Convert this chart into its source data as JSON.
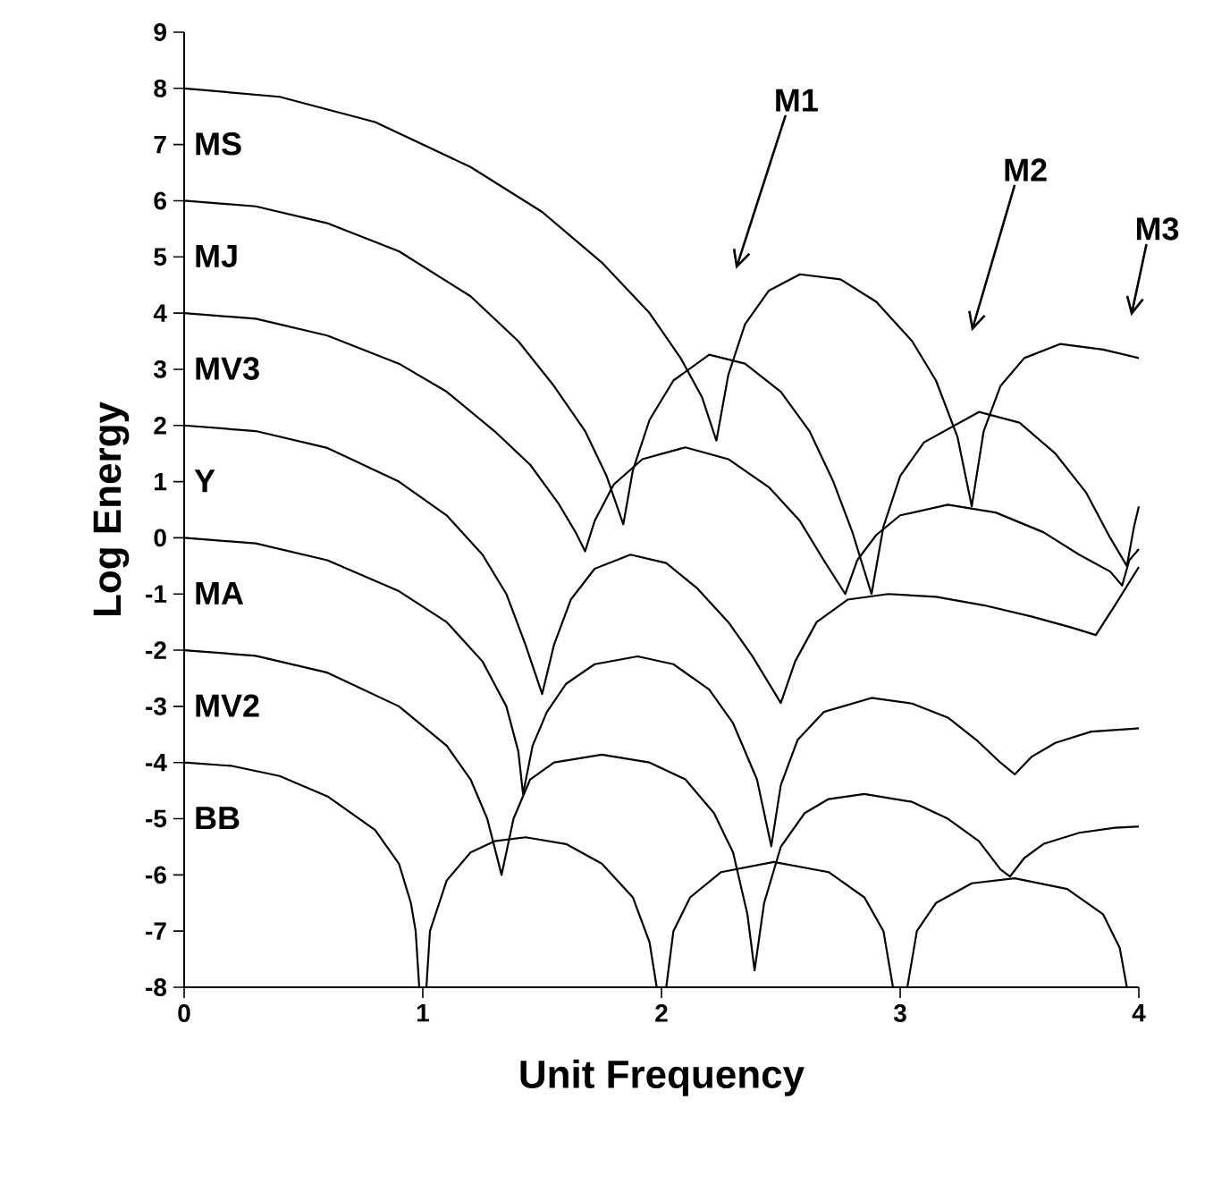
{
  "chart_data": {
    "type": "line",
    "xlabel": "Unit Frequency",
    "ylabel": "Log Energy",
    "xlim": [
      0,
      4
    ],
    "ylim": [
      -8,
      9
    ],
    "xticks": [
      0,
      1,
      2,
      3,
      4
    ],
    "yticks": [
      -8,
      -7,
      -6,
      -5,
      -4,
      -3,
      -2,
      -1,
      0,
      1,
      2,
      3,
      4,
      5,
      6,
      7,
      8,
      9
    ],
    "series": [
      {
        "name": "MS",
        "color": "#000000",
        "x": [
          0,
          0.4,
          0.8,
          1.2,
          1.5,
          1.75,
          1.95,
          2.08,
          2.17,
          2.23,
          2.28,
          2.35,
          2.45,
          2.58,
          2.75,
          2.9,
          3.05,
          3.15,
          3.24,
          3.3,
          3.35,
          3.42,
          3.52,
          3.67,
          3.85,
          4.0
        ],
        "values": [
          8,
          7.85,
          7.4,
          6.6,
          5.8,
          4.9,
          4.0,
          3.2,
          2.5,
          1.73,
          2.9,
          3.8,
          4.4,
          4.69,
          4.6,
          4.2,
          3.5,
          2.8,
          1.8,
          0.56,
          1.9,
          2.7,
          3.2,
          3.45,
          3.35,
          3.2
        ]
      },
      {
        "name": "MJ",
        "color": "#000000",
        "x": [
          0,
          0.3,
          0.6,
          0.9,
          1.2,
          1.4,
          1.55,
          1.68,
          1.77,
          1.84,
          1.88,
          1.95,
          2.05,
          2.2,
          2.35,
          2.5,
          2.62,
          2.72,
          2.8,
          2.88,
          2.93,
          3.0,
          3.1,
          3.33,
          3.5,
          3.65,
          3.78,
          3.88,
          3.95,
          3.98,
          4.0
        ],
        "values": [
          6,
          5.9,
          5.6,
          5.1,
          4.3,
          3.5,
          2.7,
          1.9,
          1.1,
          0.24,
          1.2,
          2.1,
          2.8,
          3.26,
          3.1,
          2.6,
          1.9,
          1.0,
          0.1,
          -1.0,
          0.2,
          1.1,
          1.7,
          2.24,
          2.05,
          1.5,
          0.8,
          0.0,
          -0.5,
          0.2,
          0.56
        ]
      },
      {
        "name": "MV3",
        "color": "#000000",
        "x": [
          0,
          0.3,
          0.6,
          0.9,
          1.1,
          1.3,
          1.45,
          1.57,
          1.64,
          1.68,
          1.72,
          1.8,
          1.92,
          2.1,
          2.28,
          2.45,
          2.58,
          2.68,
          2.77,
          2.82,
          2.9,
          3.0,
          3.2,
          3.4,
          3.6,
          3.75,
          3.88,
          3.93,
          3.96,
          4.0
        ],
        "values": [
          4,
          3.9,
          3.6,
          3.1,
          2.6,
          1.9,
          1.3,
          0.6,
          0.1,
          -0.24,
          0.3,
          0.95,
          1.4,
          1.61,
          1.4,
          0.9,
          0.3,
          -0.4,
          -1.0,
          -0.4,
          0.05,
          0.4,
          0.59,
          0.45,
          0.1,
          -0.3,
          -0.6,
          -0.85,
          -0.4,
          -0.2
        ]
      },
      {
        "name": "Y",
        "color": "#000000",
        "x": [
          0,
          0.3,
          0.6,
          0.9,
          1.1,
          1.25,
          1.35,
          1.43,
          1.5,
          1.55,
          1.62,
          1.72,
          1.87,
          2.02,
          2.15,
          2.28,
          2.38,
          2.5,
          2.56,
          2.65,
          2.78,
          2.95,
          3.15,
          3.35,
          3.55,
          3.72,
          3.82,
          3.9,
          4.0
        ],
        "values": [
          2,
          1.9,
          1.6,
          1.0,
          0.4,
          -0.3,
          -1.0,
          -1.9,
          -2.78,
          -1.9,
          -1.1,
          -0.55,
          -0.3,
          -0.45,
          -0.9,
          -1.5,
          -2.1,
          -2.94,
          -2.2,
          -1.5,
          -1.1,
          -1.0,
          -1.05,
          -1.2,
          -1.4,
          -1.6,
          -1.73,
          -1.2,
          -0.52
        ]
      },
      {
        "name": "MA",
        "color": "#000000",
        "x": [
          0,
          0.3,
          0.6,
          0.9,
          1.1,
          1.25,
          1.35,
          1.4,
          1.42,
          1.46,
          1.52,
          1.6,
          1.72,
          1.9,
          2.05,
          2.2,
          2.3,
          2.4,
          2.46,
          2.5,
          2.57,
          2.68,
          2.88,
          3.05,
          3.2,
          3.32,
          3.42,
          3.48,
          3.55,
          3.65,
          3.8,
          4.0
        ],
        "values": [
          0,
          -0.1,
          -0.4,
          -0.95,
          -1.5,
          -2.2,
          -3.0,
          -3.8,
          -4.56,
          -3.7,
          -3.1,
          -2.6,
          -2.25,
          -2.11,
          -2.25,
          -2.7,
          -3.3,
          -4.3,
          -5.49,
          -4.4,
          -3.6,
          -3.1,
          -2.85,
          -2.95,
          -3.2,
          -3.6,
          -4.0,
          -4.21,
          -3.9,
          -3.65,
          -3.45,
          -3.39
        ]
      },
      {
        "name": "MV2",
        "color": "#000000",
        "x": [
          0,
          0.3,
          0.6,
          0.9,
          1.1,
          1.2,
          1.27,
          1.33,
          1.38,
          1.45,
          1.55,
          1.75,
          1.95,
          2.1,
          2.22,
          2.3,
          2.36,
          2.39,
          2.43,
          2.5,
          2.6,
          2.7,
          2.85,
          3.05,
          3.2,
          3.33,
          3.42,
          3.46,
          3.52,
          3.6,
          3.75,
          3.9,
          4.0
        ],
        "values": [
          -2,
          -2.1,
          -2.4,
          -3.0,
          -3.7,
          -4.3,
          -5.0,
          -6.0,
          -5.0,
          -4.3,
          -4.0,
          -3.86,
          -4.0,
          -4.3,
          -4.9,
          -5.6,
          -6.7,
          -7.7,
          -6.5,
          -5.5,
          -4.9,
          -4.65,
          -4.56,
          -4.7,
          -5.0,
          -5.4,
          -5.9,
          -6.03,
          -5.7,
          -5.45,
          -5.25,
          -5.16,
          -5.14
        ]
      },
      {
        "name": "BB",
        "color": "#000000",
        "x": [
          0,
          0.2,
          0.4,
          0.6,
          0.8,
          0.9,
          0.95,
          0.97,
          0.985,
          1.015,
          1.03,
          1.1,
          1.2,
          1.3,
          1.43,
          1.6,
          1.75,
          1.88,
          1.95,
          1.98,
          2.02,
          2.05,
          2.12,
          2.25,
          2.47,
          2.7,
          2.85,
          2.93,
          2.97,
          3.03,
          3.07,
          3.15,
          3.3,
          3.48,
          3.7,
          3.85,
          3.92,
          3.95
        ],
        "values": [
          -4,
          -4.06,
          -4.24,
          -4.6,
          -5.2,
          -5.8,
          -6.5,
          -7.0,
          -8,
          -8,
          -7.0,
          -6.1,
          -5.6,
          -5.4,
          -5.33,
          -5.45,
          -5.8,
          -6.4,
          -7.2,
          -8,
          -8,
          -7.0,
          -6.4,
          -5.95,
          -5.77,
          -5.95,
          -6.4,
          -7.0,
          -8,
          -8,
          -7.0,
          -6.5,
          -6.15,
          -6.06,
          -6.25,
          -6.7,
          -7.3,
          -8
        ]
      }
    ],
    "annotations": [
      "M1",
      "M2",
      "M3"
    ]
  }
}
